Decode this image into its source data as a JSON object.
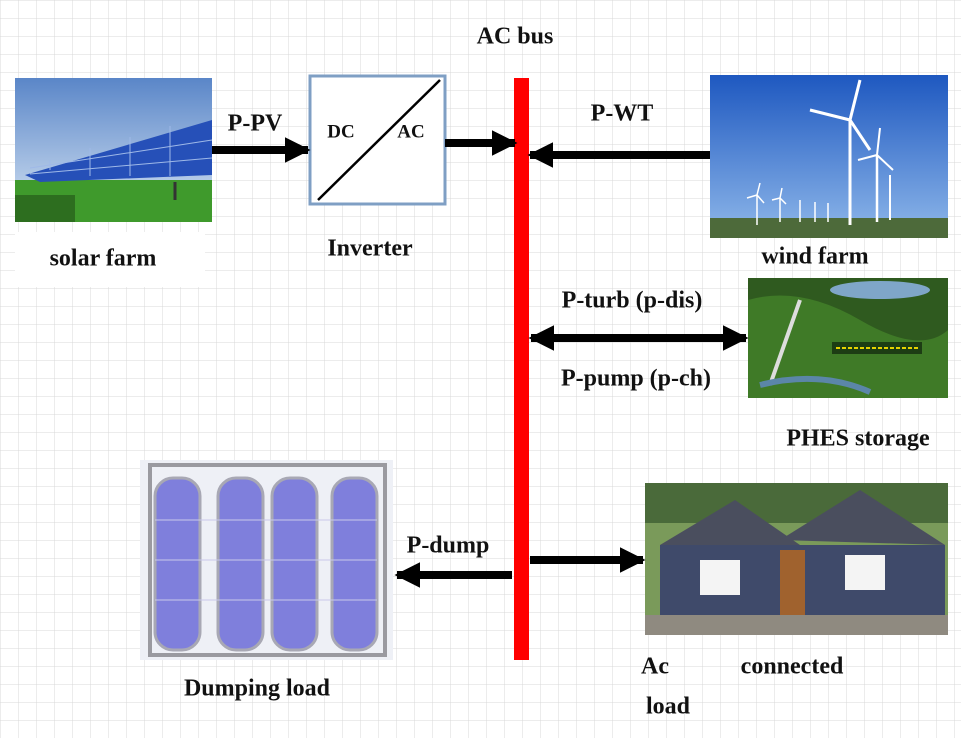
{
  "bus": {
    "label": "AC bus"
  },
  "nodes": [
    {
      "label": "solar farm"
    },
    {
      "label": "Inverter",
      "input": "DC",
      "output": "AC"
    },
    {
      "label": "wind farm"
    },
    {
      "label": "PHES storage"
    },
    {
      "label": "Dumping load"
    },
    {
      "label_parts": [
        "Ac",
        "connected",
        "load"
      ]
    }
  ],
  "flows": [
    {
      "label": "P-PV"
    },
    {
      "label": "P-WT"
    },
    {
      "label": "P-turb (p-dis)"
    },
    {
      "label": "P-pump (p-ch)"
    },
    {
      "label": "P-dump"
    }
  ]
}
